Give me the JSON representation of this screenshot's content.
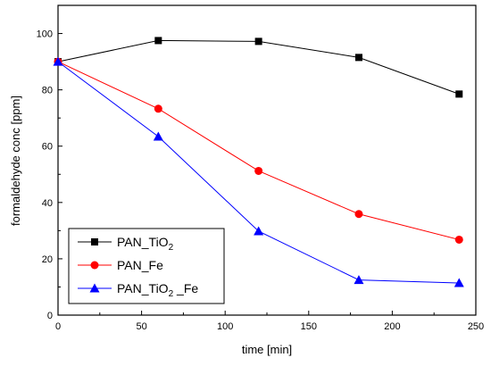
{
  "chart_data": {
    "type": "line",
    "xlabel": "time [min]",
    "ylabel": "formaldehyde conc [ppm]",
    "xlim": [
      0,
      250
    ],
    "ylim": [
      0,
      110
    ],
    "xticks": [
      0,
      50,
      100,
      150,
      200,
      250
    ],
    "yticks": [
      0,
      20,
      40,
      60,
      80,
      100
    ],
    "grid": false,
    "legend_position": "bottom-left",
    "x": [
      0,
      60,
      120,
      180,
      240
    ],
    "series": [
      {
        "name": "PAN_TiO2",
        "name_main": "PAN_TiO",
        "name_sub": "2",
        "name_tail": "",
        "color": "#000000",
        "marker": "square",
        "values": [
          90,
          97.5,
          97.2,
          91.5,
          78.5
        ]
      },
      {
        "name": "PAN_Fe",
        "name_main": "PAN_Fe",
        "name_sub": "",
        "name_tail": "",
        "color": "#ff0000",
        "marker": "circle",
        "values": [
          90,
          73.3,
          51.2,
          35.9,
          26.8
        ]
      },
      {
        "name": "PAN_TiO2 _Fe",
        "name_main": "PAN_TiO",
        "name_sub": "2",
        "name_tail": " _Fe",
        "color": "#0000ff",
        "marker": "triangle",
        "values": [
          90,
          63.4,
          29.8,
          12.5,
          11.4
        ]
      }
    ]
  }
}
